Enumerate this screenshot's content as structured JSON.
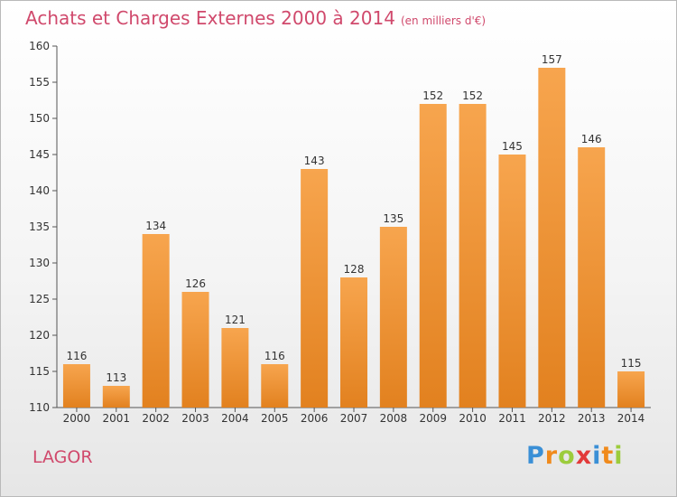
{
  "header": {
    "title": "Achats et Charges Externes 2000 à 2014",
    "subtitle": "(en milliers d'€)"
  },
  "footer": {
    "commune": "LAGOR",
    "brand": "Proxiti",
    "brand_letters": [
      "P",
      "r",
      "o",
      "x",
      "i",
      "t",
      "i"
    ]
  },
  "colors": {
    "bar_light": "#f7a54e",
    "bar_dark": "#e2811f",
    "title": "#d0496c",
    "axis": "#555555"
  },
  "chart_data": {
    "type": "bar",
    "title": "Achats et Charges Externes 2000 à 2014",
    "subtitle": "(en milliers d'€)",
    "xlabel": "",
    "ylabel": "",
    "categories": [
      "2000",
      "2001",
      "2002",
      "2003",
      "2004",
      "2005",
      "2006",
      "2007",
      "2008",
      "2009",
      "2010",
      "2011",
      "2012",
      "2013",
      "2014"
    ],
    "values": [
      116,
      113,
      134,
      126,
      121,
      116,
      143,
      128,
      135,
      152,
      152,
      145,
      157,
      146,
      115
    ],
    "ylim": [
      110,
      160
    ],
    "yticks": [
      110,
      115,
      120,
      125,
      130,
      135,
      140,
      145,
      150,
      155,
      160
    ],
    "grid": false,
    "legend": "none"
  }
}
